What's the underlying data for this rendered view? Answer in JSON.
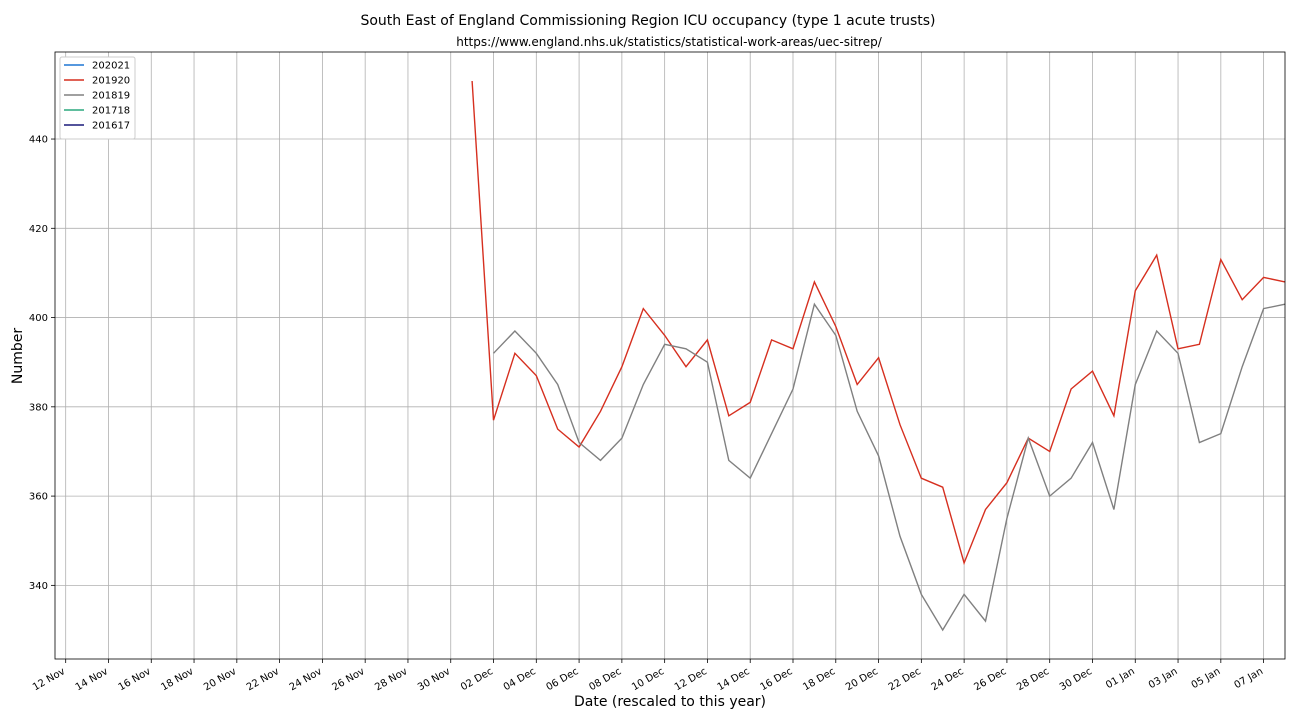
{
  "chart_data": {
    "type": "line",
    "title": "South East of England Commissioning Region ICU occupancy (type 1 acute trusts)",
    "subtitle": "https://www.england.nhs.uk/statistics/statistical-work-areas/uec-sitrep/",
    "xlabel": "Date (rescaled to this year)",
    "ylabel": "Number",
    "x_ticks": [
      "12 Nov",
      "14 Nov",
      "16 Nov",
      "18 Nov",
      "20 Nov",
      "22 Nov",
      "24 Nov",
      "26 Nov",
      "28 Nov",
      "30 Nov",
      "02 Dec",
      "04 Dec",
      "06 Dec",
      "08 Dec",
      "10 Dec",
      "12 Dec",
      "14 Dec",
      "16 Dec",
      "18 Dec",
      "20 Dec",
      "22 Dec",
      "24 Dec",
      "26 Dec",
      "28 Dec",
      "30 Dec",
      "01 Jan",
      "03 Jan",
      "05 Jan",
      "07 Jan"
    ],
    "y_ticks": [
      340,
      360,
      380,
      400,
      420,
      440
    ],
    "xlim": [
      "11 Nov 12:00",
      "08 Jan"
    ],
    "ylim": [
      323.5,
      459.5
    ],
    "grid": true,
    "legend_position": "top-left",
    "series": [
      {
        "name": "202021",
        "color": "#1f77d4",
        "x": [],
        "y": []
      },
      {
        "name": "201920",
        "color": "#d62f1f",
        "x": [
          "01 Dec",
          "02 Dec",
          "03 Dec",
          "04 Dec",
          "05 Dec",
          "06 Dec",
          "07 Dec",
          "08 Dec",
          "09 Dec",
          "10 Dec",
          "11 Dec",
          "12 Dec",
          "13 Dec",
          "14 Dec",
          "15 Dec",
          "16 Dec",
          "17 Dec",
          "18 Dec",
          "19 Dec",
          "20 Dec",
          "21 Dec",
          "22 Dec",
          "23 Dec",
          "24 Dec",
          "25 Dec",
          "26 Dec",
          "27 Dec",
          "28 Dec",
          "29 Dec",
          "30 Dec",
          "31 Dec",
          "01 Jan",
          "02 Jan",
          "03 Jan",
          "04 Jan",
          "05 Jan",
          "06 Jan",
          "07 Jan",
          "08 Jan"
        ],
        "y": [
          453,
          377,
          392,
          387,
          375,
          371,
          379,
          389,
          402,
          396,
          389,
          395,
          378,
          381,
          395,
          393,
          408,
          398,
          385,
          391,
          376,
          364,
          362,
          345,
          357,
          363,
          373,
          370,
          384,
          388,
          378,
          406,
          414,
          393,
          394,
          413,
          404,
          409,
          408
        ]
      },
      {
        "name": "201819",
        "color": "#808080",
        "x": [
          "02 Dec",
          "03 Dec",
          "04 Dec",
          "05 Dec",
          "06 Dec",
          "07 Dec",
          "08 Dec",
          "09 Dec",
          "10 Dec",
          "11 Dec",
          "12 Dec",
          "13 Dec",
          "14 Dec",
          "15 Dec",
          "16 Dec",
          "17 Dec",
          "18 Dec",
          "19 Dec",
          "20 Dec",
          "21 Dec",
          "22 Dec",
          "23 Dec",
          "24 Dec",
          "25 Dec",
          "26 Dec",
          "27 Dec",
          "28 Dec",
          "29 Dec",
          "30 Dec",
          "31 Dec",
          "01 Jan",
          "02 Jan",
          "03 Jan",
          "04 Jan",
          "05 Jan",
          "06 Jan",
          "07 Jan",
          "08 Jan"
        ],
        "y": [
          392,
          397,
          392,
          385,
          372,
          368,
          373,
          385,
          394,
          393,
          390,
          368,
          364,
          374,
          384,
          403,
          396,
          379,
          369,
          351,
          338,
          330,
          338,
          332,
          355,
          373,
          360,
          364,
          372,
          357,
          385,
          397,
          392,
          372,
          374,
          389,
          402,
          403
        ]
      },
      {
        "name": "201718",
        "color": "#2ca87f",
        "x": [],
        "y": []
      },
      {
        "name": "201617",
        "color": "#1a1a7a",
        "x": [],
        "y": []
      }
    ]
  }
}
